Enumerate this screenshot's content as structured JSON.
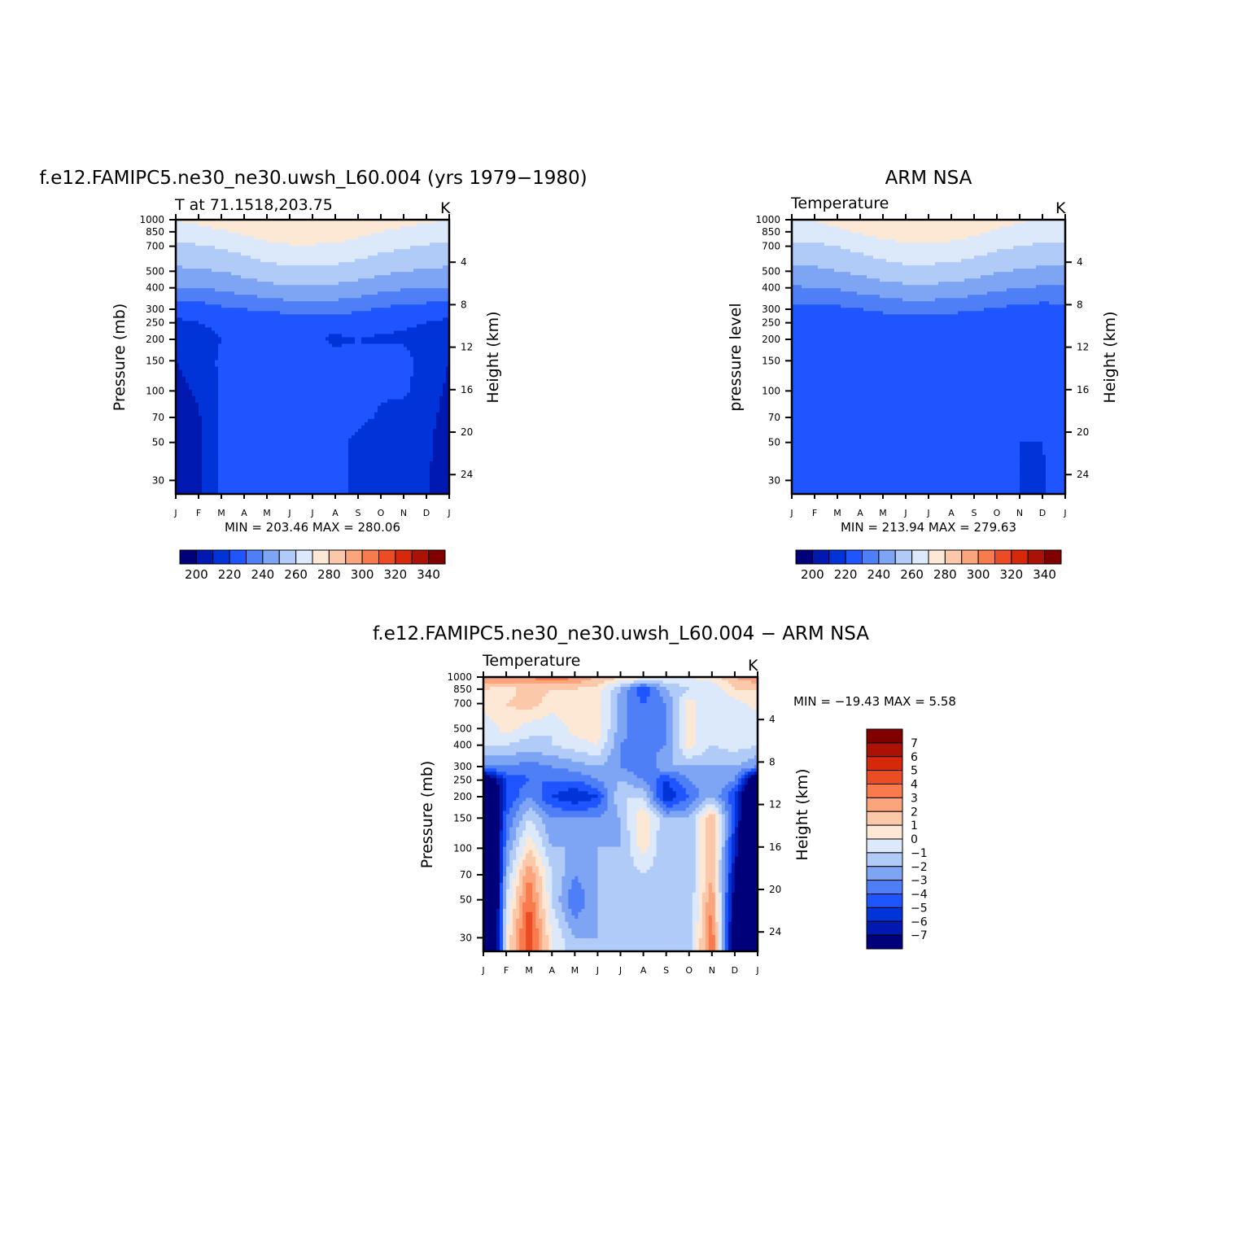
{
  "chart_data": [
    {
      "type": "heatmap",
      "title": "f.e12.FAMIPC5.ne30_ne30.uwsh_L60.004 (yrs 1979−1980)",
      "subtitle_left": "T at 71.1518,203.75",
      "units": "K",
      "ylabel": "Pressure (mb)",
      "ylabel_right": "Height (km)",
      "stats": "MIN = 203.46 MAX = 280.06",
      "x_ticks": [
        "J",
        "F",
        "M",
        "A",
        "M",
        "J",
        "J",
        "A",
        "S",
        "O",
        "N",
        "D",
        "J"
      ],
      "y_ticks": [
        "30",
        "50",
        "70",
        "100",
        "150",
        "200",
        "250",
        "300",
        "400",
        "500",
        "700",
        "850",
        "1000"
      ],
      "y_ticks_right": [
        "24",
        "20",
        "16",
        "12",
        "8",
        "4"
      ],
      "colorbar_labels": [
        "200",
        "220",
        "240",
        "260",
        "280",
        "300",
        "320",
        "340"
      ],
      "x": [
        0,
        1,
        2,
        3,
        4,
        5,
        6,
        7,
        8,
        9,
        10,
        11,
        12
      ],
      "y": [
        1000,
        850,
        700,
        500,
        400,
        300,
        250,
        200,
        150,
        100,
        70,
        50,
        30
      ],
      "z": [
        [
          270,
          272,
          275,
          277,
          279,
          280,
          280,
          279,
          277,
          275,
          273,
          271,
          270
        ],
        [
          266,
          267,
          269,
          272,
          275,
          277,
          277,
          276,
          273,
          270,
          268,
          267,
          266
        ],
        [
          258,
          259,
          261,
          264,
          267,
          269,
          269,
          268,
          266,
          263,
          261,
          259,
          258
        ],
        [
          248,
          249,
          250,
          253,
          256,
          258,
          258,
          257,
          255,
          252,
          250,
          249,
          248
        ],
        [
          240,
          240,
          242,
          245,
          247,
          249,
          249,
          248,
          246,
          243,
          241,
          240,
          240
        ],
        [
          224,
          225,
          228,
          230,
          232,
          234,
          235,
          234,
          232,
          229,
          227,
          226,
          224
        ],
        [
          218,
          220,
          222,
          222,
          222,
          221,
          221,
          222,
          223,
          222,
          221,
          220,
          218
        ],
        [
          213,
          216,
          220,
          221,
          220,
          220,
          221,
          219,
          220,
          219,
          219,
          217,
          213
        ],
        [
          210,
          213,
          222,
          223,
          223,
          223,
          223,
          222,
          221,
          223,
          223,
          216,
          210
        ],
        [
          208,
          211,
          222,
          223,
          223,
          223,
          223,
          223,
          222,
          221,
          222,
          215,
          208
        ],
        [
          206,
          209,
          222,
          223,
          223,
          223,
          223,
          223,
          222,
          219,
          215,
          213,
          206
        ],
        [
          205,
          208,
          222,
          223,
          223,
          223,
          223,
          222,
          218,
          214,
          212,
          212,
          205
        ],
        [
          204,
          207,
          222,
          223,
          223,
          223,
          223,
          223,
          217,
          214,
          213,
          211,
          204
        ]
      ],
      "levels": [
        195,
        200,
        210,
        220,
        230,
        240,
        250,
        260,
        270,
        280,
        290,
        300,
        310,
        320,
        330,
        340
      ],
      "colors": [
        "#00007a",
        "#0019b0",
        "#0033d8",
        "#1e55ff",
        "#4f7ff7",
        "#7ea4f4",
        "#b1cbf8",
        "#dbe9fa",
        "#fde8d6",
        "#fcc8aa",
        "#fca57c",
        "#f77b4d",
        "#ec4c24",
        "#d6280b",
        "#a91204",
        "#800000"
      ]
    },
    {
      "type": "heatmap",
      "title": "ARM NSA",
      "subtitle_left": "Temperature",
      "units": "K",
      "ylabel": "pressure level",
      "ylabel_right": "Height (km)",
      "stats": "MIN = 213.94 MAX = 279.63",
      "x_ticks": [
        "J",
        "F",
        "M",
        "A",
        "M",
        "J",
        "J",
        "A",
        "S",
        "O",
        "N",
        "D",
        "J"
      ],
      "y_ticks": [
        "30",
        "50",
        "70",
        "100",
        "150",
        "200",
        "250",
        "300",
        "400",
        "500",
        "700",
        "850",
        "1000"
      ],
      "y_ticks_right": [
        "24",
        "20",
        "16",
        "12",
        "8",
        "4"
      ],
      "colorbar_labels": [
        "200",
        "220",
        "240",
        "260",
        "280",
        "300",
        "320",
        "340"
      ],
      "x": [
        0,
        1,
        2,
        3,
        4,
        5,
        6,
        7,
        8,
        9,
        10,
        11,
        12
      ],
      "y": [
        1000,
        850,
        700,
        500,
        400,
        300,
        250,
        200,
        150,
        100,
        70,
        50,
        30
      ],
      "z": [
        [
          268,
          270,
          273,
          276,
          278,
          279,
          279,
          278,
          276,
          273,
          271,
          269,
          268
        ],
        [
          265,
          266,
          268,
          271,
          274,
          276,
          276,
          275,
          272,
          269,
          267,
          266,
          265
        ],
        [
          257,
          258,
          260,
          263,
          266,
          268,
          268,
          267,
          265,
          262,
          260,
          258,
          257
        ],
        [
          247,
          248,
          250,
          252,
          255,
          257,
          257,
          256,
          254,
          251,
          249,
          248,
          247
        ],
        [
          239,
          240,
          241,
          244,
          246,
          248,
          248,
          247,
          245,
          242,
          240,
          239,
          239
        ],
        [
          227,
          226,
          228,
          230,
          232,
          234,
          234,
          233,
          231,
          229,
          227,
          226,
          227
        ],
        [
          224,
          222,
          221,
          223,
          224,
          224,
          223,
          223,
          222,
          221,
          222,
          223,
          224
        ],
        [
          223,
          221,
          222,
          223,
          224,
          224,
          224,
          224,
          223,
          223,
          223,
          223,
          223
        ],
        [
          224,
          224,
          224,
          224,
          224,
          224,
          224,
          224,
          224,
          224,
          223,
          223,
          224
        ],
        [
          224,
          224,
          224,
          224,
          224,
          224,
          224,
          224,
          224,
          223,
          222,
          222,
          224
        ],
        [
          224,
          224,
          224,
          224,
          224,
          224,
          224,
          224,
          224,
          222,
          221,
          221,
          224
        ],
        [
          224,
          224,
          224,
          224,
          224,
          224,
          224,
          224,
          224,
          222,
          220,
          220,
          224
        ],
        [
          224,
          224,
          224,
          224,
          224,
          224,
          224,
          224,
          224,
          222,
          220,
          219,
          224
        ]
      ],
      "levels": [
        195,
        200,
        210,
        220,
        230,
        240,
        250,
        260,
        270,
        280,
        290,
        300,
        310,
        320,
        330,
        340
      ],
      "colors": [
        "#00007a",
        "#0019b0",
        "#0033d8",
        "#1e55ff",
        "#4f7ff7",
        "#7ea4f4",
        "#b1cbf8",
        "#dbe9fa",
        "#fde8d6",
        "#fcc8aa",
        "#fca57c",
        "#f77b4d",
        "#ec4c24",
        "#d6280b",
        "#a91204",
        "#800000"
      ]
    },
    {
      "type": "heatmap",
      "title": "f.e12.FAMIPC5.ne30_ne30.uwsh_L60.004 − ARM NSA",
      "subtitle_left": "Temperature",
      "units": "K",
      "ylabel": "Pressure (mb)",
      "ylabel_right": "Height (km)",
      "stats": "MIN = −19.43 MAX =    5.58",
      "x_ticks": [
        "J",
        "F",
        "M",
        "A",
        "M",
        "J",
        "J",
        "A",
        "S",
        "O",
        "N",
        "D",
        "J"
      ],
      "y_ticks": [
        "30",
        "50",
        "70",
        "100",
        "150",
        "200",
        "250",
        "300",
        "400",
        "500",
        "700",
        "850",
        "1000"
      ],
      "y_ticks_right": [
        "24",
        "20",
        "16",
        "12",
        "8",
        "4"
      ],
      "colorbar_labels": [
        "7",
        "6",
        "5",
        "4",
        "3",
        "2",
        "1",
        "0",
        "−1",
        "−2",
        "−3",
        "−4",
        "−5",
        "−6",
        "−7"
      ],
      "x": [
        0,
        1,
        2,
        3,
        4,
        5,
        6,
        7,
        8,
        9,
        10,
        11,
        12
      ],
      "y": [
        1000,
        850,
        700,
        500,
        400,
        300,
        250,
        200,
        150,
        100,
        70,
        50,
        30
      ],
      "z": [
        [
          3,
          3,
          3,
          4,
          3,
          2,
          1,
          0.5,
          0,
          0,
          0.5,
          2,
          3
        ],
        [
          1,
          0.5,
          1.5,
          1,
          1,
          0.5,
          -2,
          -5,
          -2,
          -1,
          -1,
          1,
          1
        ],
        [
          0.5,
          1,
          1.5,
          0.5,
          1,
          0.5,
          -2.5,
          -4,
          -3,
          0.5,
          -1,
          -0.5,
          0.5
        ],
        [
          -1,
          0.5,
          -0.5,
          -1,
          0.5,
          0.5,
          -2.5,
          -4,
          -3,
          0.5,
          -1,
          -0.5,
          -1
        ],
        [
          -1,
          -1,
          -1.5,
          -1,
          -0.5,
          0,
          -3,
          -3.5,
          -3,
          0.5,
          -1,
          -0.5,
          -1
        ],
        [
          -3,
          -3,
          -3.5,
          -3,
          -2.5,
          -2,
          -3,
          -4,
          -2,
          -2,
          -2,
          -2,
          -3
        ],
        [
          -10,
          -5,
          -4,
          -4,
          -4,
          -3,
          -2,
          -3,
          -5,
          -3,
          -2,
          -3,
          -10
        ],
        [
          -12,
          -5,
          -3,
          -5,
          -6,
          -5,
          -1,
          -1,
          -6,
          -4,
          -2,
          -5,
          -12
        ],
        [
          -14,
          -4,
          -1,
          -3,
          -3,
          -3,
          -2,
          1,
          -2,
          -2,
          2,
          -5,
          -14
        ],
        [
          -16,
          -3,
          1,
          -2,
          -2,
          -2,
          -2,
          0.5,
          -2,
          -2,
          2,
          -6,
          -16
        ],
        [
          -17,
          -2,
          3,
          -1,
          -3,
          -2,
          -2,
          -1,
          -2,
          -2,
          2,
          -7,
          -17
        ],
        [
          -18,
          -1,
          4,
          -1,
          -4,
          -2,
          -2,
          -2,
          -2,
          -2,
          3,
          -8,
          -18
        ],
        [
          -19,
          0,
          5,
          0,
          -2,
          -2,
          -1,
          -2,
          -2,
          -2,
          4,
          -9,
          -19
        ]
      ],
      "levels": [
        -8,
        -7,
        -6,
        -5,
        -4,
        -3,
        -2,
        -1,
        0,
        1,
        2,
        3,
        4,
        5,
        6,
        7,
        8
      ],
      "colors": [
        "#00007a",
        "#0019b0",
        "#0033d8",
        "#1e55ff",
        "#4f7ff7",
        "#7ea4f4",
        "#b1cbf8",
        "#dbe9fa",
        "#fde8d6",
        "#fcc8aa",
        "#fca57c",
        "#f77b4d",
        "#ec4c24",
        "#d6280b",
        "#a91204",
        "#800000"
      ]
    }
  ]
}
